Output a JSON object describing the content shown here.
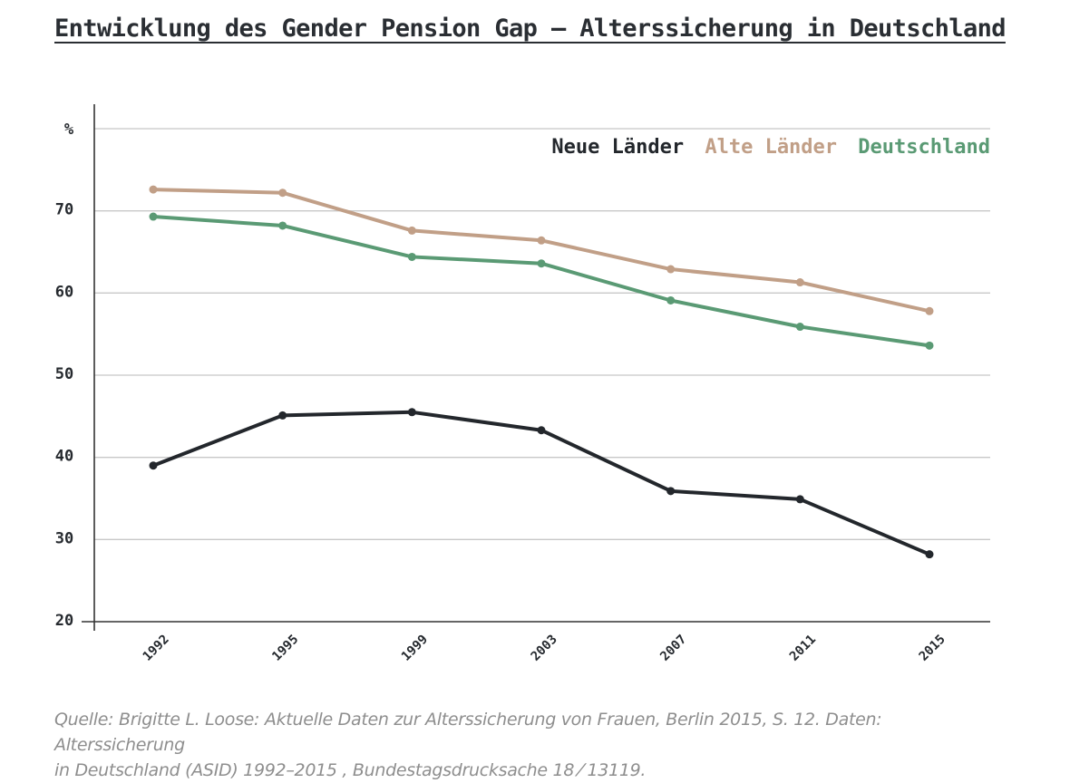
{
  "title": "Entwicklung des Gender Pension Gap – Alterssicherung in Deutschland",
  "source_line1": "Quelle: Brigitte L. Loose: Aktuelle Daten zur Alterssicherung von Frauen, Berlin 2015, S. 12. Daten: Alterssicherung",
  "source_line2": "in Deutschland (ASID) 1992–2015 , Bundestagsdrucksache 18 ⁄ 13119.",
  "colors": {
    "neue": "#23272c",
    "alte": "#c19f87",
    "deutschland": "#5a9a74",
    "grid": "#c8c8c8",
    "axis": "#333333"
  },
  "chart_data": {
    "type": "line",
    "title": "Entwicklung des Gender Pension Gap – Alterssicherung in Deutschland",
    "ylabel": "%",
    "xlabel": "",
    "categories": [
      "1992",
      "1995",
      "1999",
      "2003",
      "2007",
      "2011",
      "2015"
    ],
    "yticks": [
      20,
      30,
      40,
      50,
      60,
      70
    ],
    "ylim": [
      20,
      80
    ],
    "grid": true,
    "legend_position": "top-right",
    "series": [
      {
        "name": "Neue Länder",
        "color": "#23272c",
        "values": [
          39,
          45.1,
          45.5,
          43.3,
          35.9,
          34.9,
          28.2
        ]
      },
      {
        "name": "Alte Länder",
        "color": "#c19f87",
        "values": [
          72.6,
          72.2,
          67.6,
          66.4,
          62.9,
          61.3,
          57.8
        ]
      },
      {
        "name": "Deutschland",
        "color": "#5a9a74",
        "values": [
          69.3,
          68.2,
          64.4,
          63.6,
          59.1,
          55.9,
          53.6
        ]
      }
    ]
  }
}
